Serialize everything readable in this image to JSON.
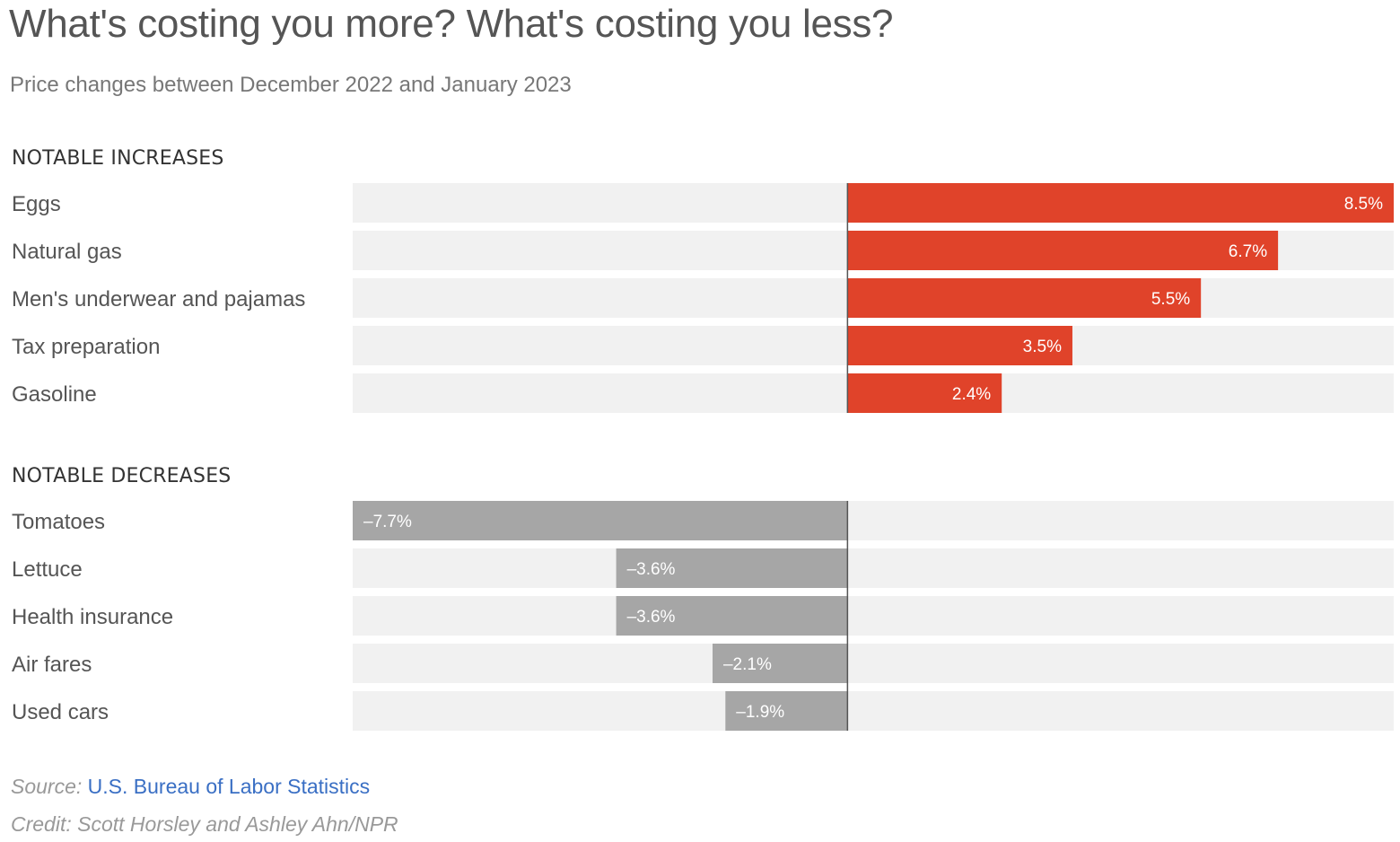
{
  "title": "What's costing you more? What's costing you less?",
  "subtitle": "Price changes between December 2022 and January 2023",
  "source": {
    "label": "Source:",
    "link_text": "U.S. Bureau of Labor Statistics"
  },
  "credit": "Credit: Scott Horsley and Ashley Ahn/NPR",
  "colors": {
    "increase": "#e0432a",
    "decrease": "#a6a6a6",
    "track": "#f1f1f1",
    "axis": "#555555"
  },
  "chart_data": [
    {
      "type": "bar",
      "orientation": "horizontal",
      "title": "NOTABLE INCREASES",
      "categories": [
        "Eggs",
        "Natural gas",
        "Men's underwear and pajamas",
        "Tax preparation",
        "Gasoline"
      ],
      "values": [
        8.5,
        6.7,
        5.5,
        3.5,
        2.4
      ],
      "data_labels": [
        "8.5%",
        "6.7%",
        "5.5%",
        "3.5%",
        "2.4%"
      ],
      "unit": "%",
      "xlim": [
        -7.7,
        8.5
      ]
    },
    {
      "type": "bar",
      "orientation": "horizontal",
      "title": "NOTABLE DECREASES",
      "categories": [
        "Tomatoes",
        "Lettuce",
        "Health insurance",
        "Air fares",
        "Used cars"
      ],
      "values": [
        -7.7,
        -3.6,
        -3.6,
        -2.1,
        -1.9
      ],
      "data_labels": [
        "–7.7%",
        "–3.6%",
        "–3.6%",
        "–2.1%",
        "–1.9%"
      ],
      "unit": "%",
      "xlim": [
        -7.7,
        8.5
      ]
    }
  ]
}
